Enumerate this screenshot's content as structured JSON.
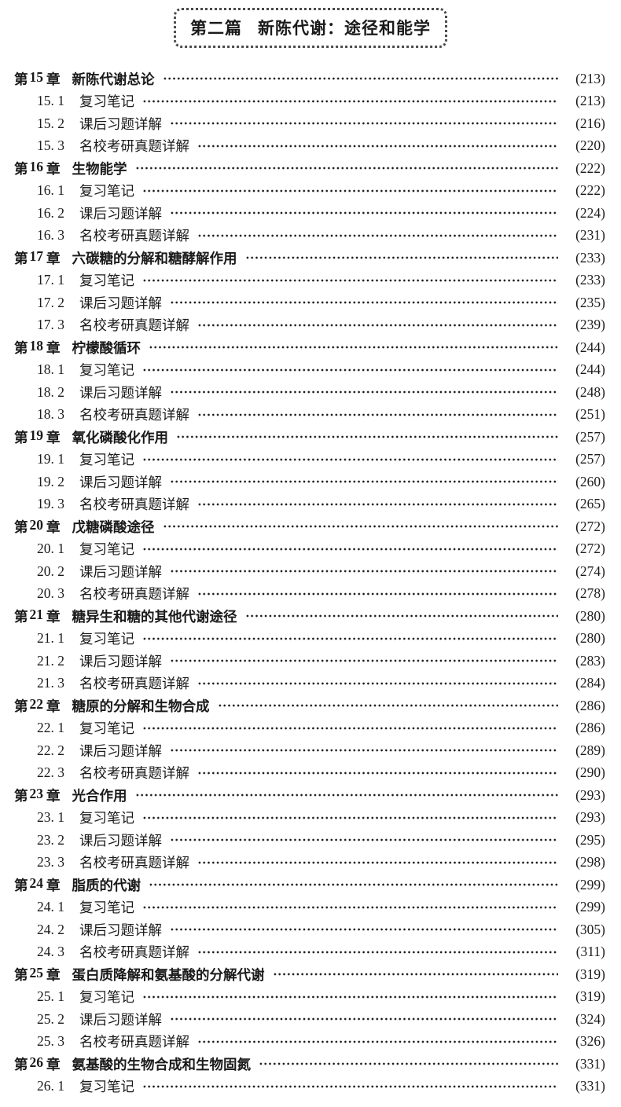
{
  "banner": {
    "part_label": "第二篇",
    "title": "新陈代谢：途径和能学"
  },
  "toc": {
    "chapter_prefix": "第",
    "chapter_suffix": "章",
    "chapters": [
      {
        "num": "15",
        "title": "新陈代谢总论",
        "page": "(213)",
        "items": [
          {
            "num": "15. 1",
            "title": "复习笔记",
            "page": "(213)"
          },
          {
            "num": "15. 2",
            "title": "课后习题详解",
            "page": "(216)"
          },
          {
            "num": "15. 3",
            "title": "名校考研真题详解",
            "page": "(220)"
          }
        ]
      },
      {
        "num": "16",
        "title": "生物能学",
        "page": "(222)",
        "items": [
          {
            "num": "16. 1",
            "title": "复习笔记",
            "page": "(222)"
          },
          {
            "num": "16. 2",
            "title": "课后习题详解",
            "page": "(224)"
          },
          {
            "num": "16. 3",
            "title": "名校考研真题详解",
            "page": "(231)"
          }
        ]
      },
      {
        "num": "17",
        "title": "六碳糖的分解和糖酵解作用",
        "page": "(233)",
        "items": [
          {
            "num": "17. 1",
            "title": "复习笔记",
            "page": "(233)"
          },
          {
            "num": "17. 2",
            "title": "课后习题详解",
            "page": "(235)"
          },
          {
            "num": "17. 3",
            "title": "名校考研真题详解",
            "page": "(239)"
          }
        ]
      },
      {
        "num": "18",
        "title": "柠檬酸循环",
        "page": "(244)",
        "items": [
          {
            "num": "18. 1",
            "title": "复习笔记",
            "page": "(244)"
          },
          {
            "num": "18. 2",
            "title": "课后习题详解",
            "page": "(248)"
          },
          {
            "num": "18. 3",
            "title": "名校考研真题详解",
            "page": "(251)"
          }
        ]
      },
      {
        "num": "19",
        "title": "氧化磷酸化作用",
        "page": "(257)",
        "items": [
          {
            "num": "19. 1",
            "title": "复习笔记",
            "page": "(257)"
          },
          {
            "num": "19. 2",
            "title": "课后习题详解",
            "page": "(260)"
          },
          {
            "num": "19. 3",
            "title": "名校考研真题详解",
            "page": "(265)"
          }
        ]
      },
      {
        "num": "20",
        "title": "戊糖磷酸途径",
        "page": "(272)",
        "items": [
          {
            "num": "20. 1",
            "title": "复习笔记",
            "page": "(272)"
          },
          {
            "num": "20. 2",
            "title": "课后习题详解",
            "page": "(274)"
          },
          {
            "num": "20. 3",
            "title": "名校考研真题详解",
            "page": "(278)"
          }
        ]
      },
      {
        "num": "21",
        "title": "糖异生和糖的其他代谢途径",
        "page": "(280)",
        "items": [
          {
            "num": "21. 1",
            "title": "复习笔记",
            "page": "(280)"
          },
          {
            "num": "21. 2",
            "title": "课后习题详解",
            "page": "(283)"
          },
          {
            "num": "21. 3",
            "title": "名校考研真题详解",
            "page": "(284)"
          }
        ]
      },
      {
        "num": "22",
        "title": "糖原的分解和生物合成",
        "page": "(286)",
        "items": [
          {
            "num": "22. 1",
            "title": "复习笔记",
            "page": "(286)"
          },
          {
            "num": "22. 2",
            "title": "课后习题详解",
            "page": "(289)"
          },
          {
            "num": "22. 3",
            "title": "名校考研真题详解",
            "page": "(290)"
          }
        ]
      },
      {
        "num": "23",
        "title": "光合作用",
        "page": "(293)",
        "items": [
          {
            "num": "23. 1",
            "title": "复习笔记",
            "page": "(293)"
          },
          {
            "num": "23. 2",
            "title": "课后习题详解",
            "page": "(295)"
          },
          {
            "num": "23. 3",
            "title": "名校考研真题详解",
            "page": "(298)"
          }
        ]
      },
      {
        "num": "24",
        "title": "脂质的代谢",
        "page": "(299)",
        "items": [
          {
            "num": "24. 1",
            "title": "复习笔记",
            "page": "(299)"
          },
          {
            "num": "24. 2",
            "title": "课后习题详解",
            "page": "(305)"
          },
          {
            "num": "24. 3",
            "title": "名校考研真题详解",
            "page": "(311)"
          }
        ]
      },
      {
        "num": "25",
        "title": "蛋白质降解和氨基酸的分解代谢",
        "page": "(319)",
        "items": [
          {
            "num": "25. 1",
            "title": "复习笔记",
            "page": "(319)"
          },
          {
            "num": "25. 2",
            "title": "课后习题详解",
            "page": "(324)"
          },
          {
            "num": "25. 3",
            "title": "名校考研真题详解",
            "page": "(326)"
          }
        ]
      },
      {
        "num": "26",
        "title": "氨基酸的生物合成和生物固氮",
        "page": "(331)",
        "items": [
          {
            "num": "26. 1",
            "title": "复习笔记",
            "page": "(331)"
          }
        ]
      }
    ]
  }
}
